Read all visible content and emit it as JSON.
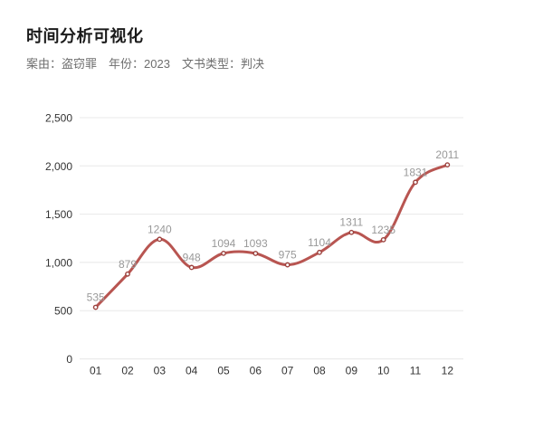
{
  "header": {
    "title": "时间分析可视化",
    "filters": [
      {
        "text": "案由：盗窃罪"
      },
      {
        "text": "年份：2023"
      },
      {
        "text": "文书类型：判决"
      }
    ]
  },
  "chart_data": {
    "type": "line",
    "title": "时间分析可视化",
    "categories": [
      "01",
      "02",
      "03",
      "04",
      "05",
      "06",
      "07",
      "08",
      "09",
      "10",
      "11",
      "12"
    ],
    "values": [
      535,
      879,
      1240,
      948,
      1094,
      1093,
      975,
      1104,
      1311,
      1235,
      1831,
      2011
    ],
    "xlabel": "",
    "ylabel": "",
    "ylim": [
      0,
      2500
    ],
    "yticks": [
      0,
      500,
      1000,
      1500,
      2000,
      2500
    ],
    "ytick_labels": [
      "0",
      "500",
      "1,000",
      "1,500",
      "2,000",
      "2,500"
    ],
    "smooth": true,
    "grid": true,
    "legend": "none",
    "show_point_labels": true,
    "colors": {
      "line": "#b85551",
      "marker_stroke": "#9c423e",
      "marker_fill": "#ffffff",
      "value_label": "#999999",
      "axis_label": "#333333",
      "gridline": "#e8e8e8"
    }
  }
}
